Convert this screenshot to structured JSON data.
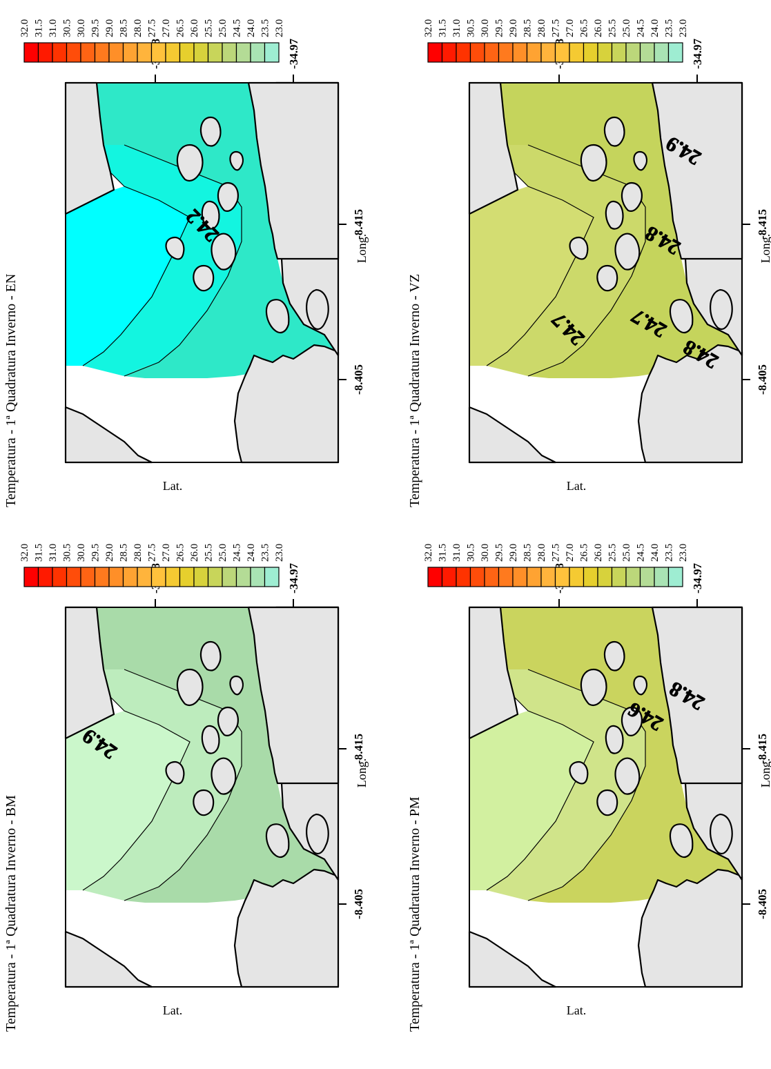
{
  "panels": [
    {
      "id": "en",
      "title": "Temperatura - 1ª Quadratura Inverno - EN",
      "water_color": "#00ffff",
      "zones": [
        {
          "color": "#00ffff"
        },
        {
          "color": "#13f5e0"
        },
        {
          "color": "#2ee8c8"
        }
      ],
      "contour_labels": [
        "24.2"
      ],
      "xlabel": "Long.",
      "ylabel": "Lat.",
      "x_ticks": [
        "-34.98",
        "-34.97"
      ],
      "y_ticks": [
        "-8.405",
        "-8.415"
      ]
    },
    {
      "id": "vz",
      "title": "Temperatura - 1ª Quadratura Inverno - VZ",
      "water_color": "#ccd96a",
      "zones": [
        {
          "color": "#d3dd72"
        },
        {
          "color": "#ccd96a"
        },
        {
          "color": "#c5d45c"
        }
      ],
      "contour_labels": [
        "24.7",
        "24.8",
        "24.9",
        "24.7",
        "24.8"
      ],
      "xlabel": "Long.",
      "ylabel": "Lat.",
      "x_ticks": [
        "-34.98",
        "-34.97"
      ],
      "y_ticks": [
        "-8.405",
        "-8.415"
      ]
    },
    {
      "id": "bm",
      "title": "Temperatura - 1ª Quadratura Inverno - BM",
      "water_color": "#cbf7cb",
      "zones": [
        {
          "color": "#cbf7cb"
        },
        {
          "color": "#bdecbd"
        },
        {
          "color": "#a9dba9"
        }
      ],
      "contour_labels": [
        "24.9"
      ],
      "xlabel": "Long.",
      "ylabel": "Lat.",
      "x_ticks": [
        "-34.98",
        "-34.97"
      ],
      "y_ticks": [
        "-8.405",
        "-8.415"
      ]
    },
    {
      "id": "pm",
      "title": "Temperatura - 1ª Quadratura Inverno - PM",
      "water_color": "#d2f0a0",
      "zones": [
        {
          "color": "#d2f0a0"
        },
        {
          "color": "#d0e48a"
        },
        {
          "color": "#cad45e"
        }
      ],
      "contour_labels": [
        "24.6",
        "24.8"
      ],
      "xlabel": "Long.",
      "ylabel": "Lat.",
      "x_ticks": [
        "-34.98",
        "-34.97"
      ],
      "y_ticks": [
        "-8.405",
        "-8.415"
      ]
    }
  ],
  "legend": {
    "values": [
      "32.0",
      "31.5",
      "31.0",
      "30.5",
      "30.0",
      "29.5",
      "29.0",
      "28.5",
      "28.0",
      "27.5",
      "27.0",
      "26.5",
      "26.0",
      "25.5",
      "25.0",
      "24.5",
      "24.0",
      "23.5",
      "23.0"
    ],
    "colors": [
      "#ff0000",
      "#ff1a00",
      "#ff3300",
      "#ff4d0a",
      "#ff6414",
      "#ff7a1e",
      "#ff8f28",
      "#ffa332",
      "#ffb43c",
      "#ffc23c",
      "#f5ca32",
      "#e6cf2d",
      "#d7d23c",
      "#c8d55a",
      "#bcd77a",
      "#b4dc96",
      "#a9e3b4",
      "#9eedd2"
    ]
  },
  "land_color": "#e5e5e5"
}
